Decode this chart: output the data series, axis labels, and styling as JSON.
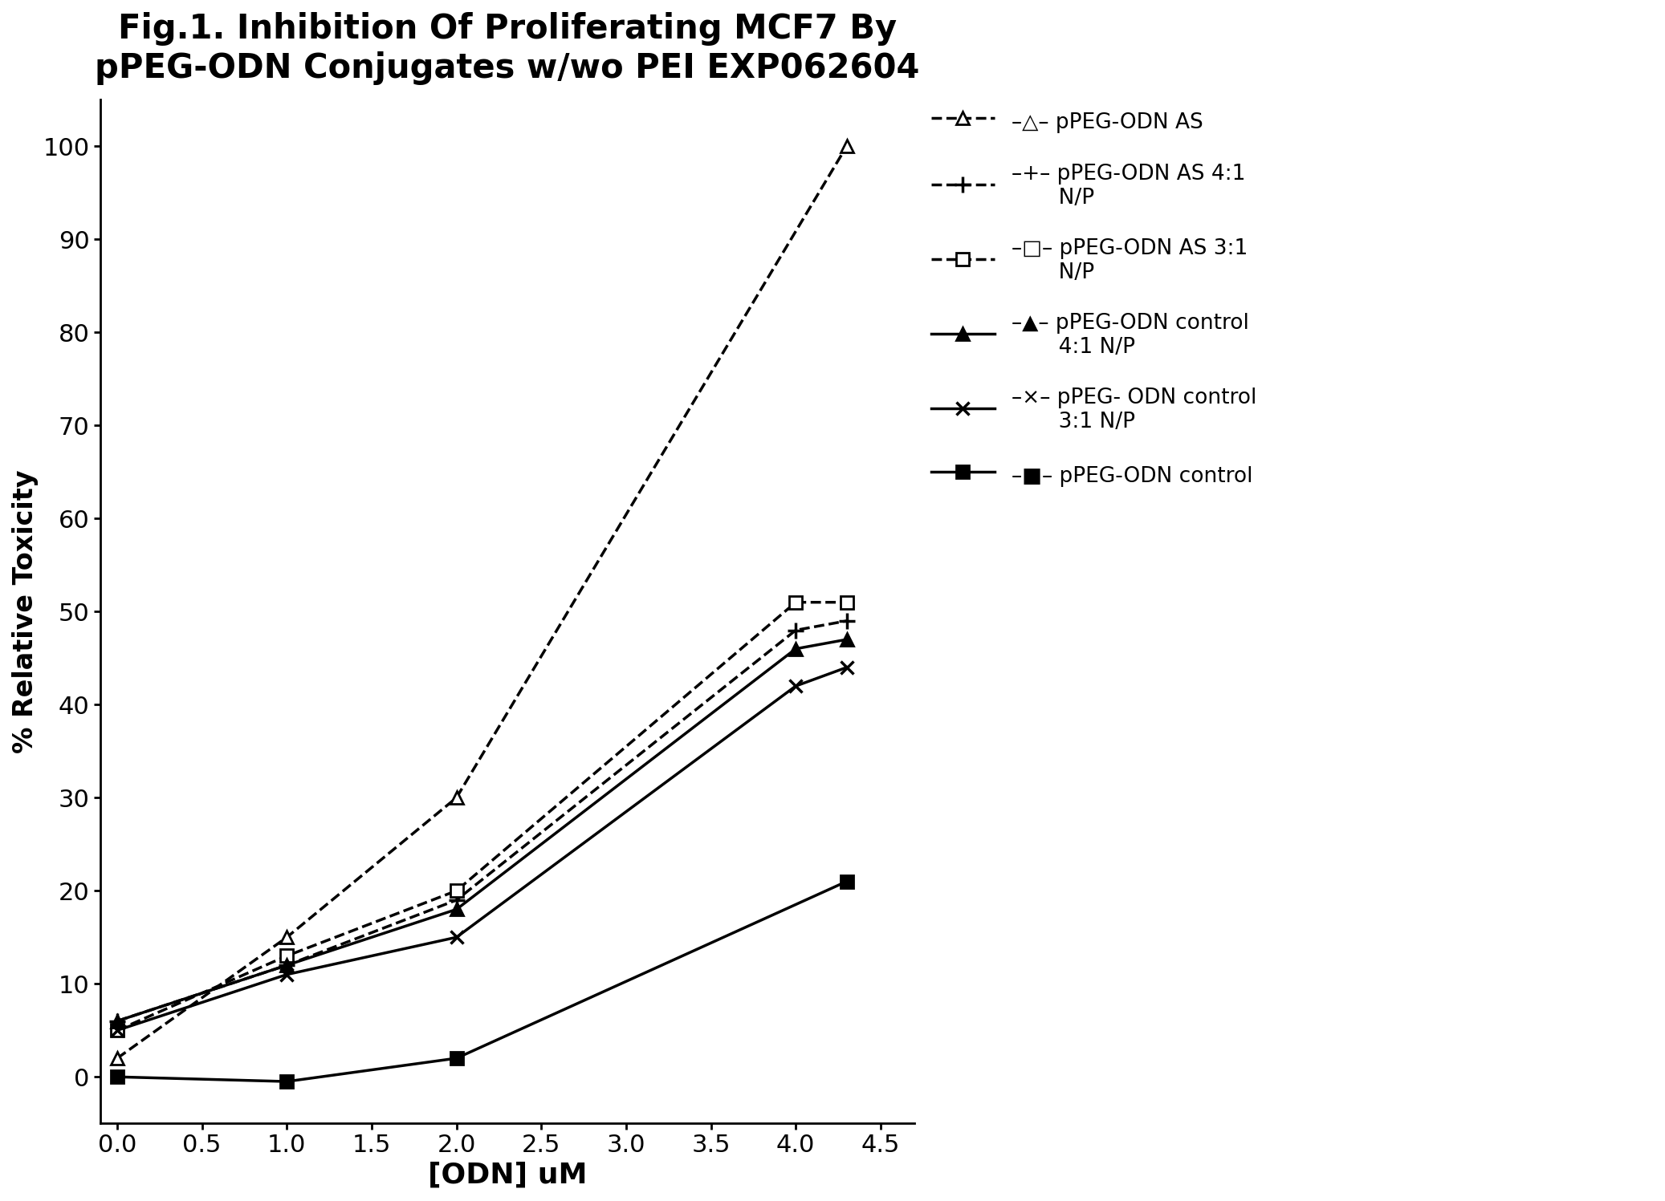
{
  "title": "Fig.1. Inhibition Of Proliferating MCF7 By\npPEG-ODN Conjugates w/wo PEI EXP062604",
  "xlabel": "[ODN] uM",
  "ylabel": "% Relative Toxicity",
  "xlim": [
    -0.1,
    4.7
  ],
  "ylim": [
    -5,
    105
  ],
  "xticks": [
    0,
    0.5,
    1,
    1.5,
    2,
    2.5,
    3,
    3.5,
    4,
    4.5
  ],
  "yticks": [
    0,
    10,
    20,
    30,
    40,
    50,
    60,
    70,
    80,
    90,
    100
  ],
  "series": [
    {
      "legend_label": "△  pPEG-ODN AS",
      "x": [
        0,
        1,
        2,
        4.3
      ],
      "y": [
        2,
        15,
        30,
        100
      ],
      "color": "#000000",
      "linestyle": "--",
      "linewidth": 2.5,
      "marker": "^",
      "markersize": 12,
      "markerfacecolor": "white",
      "markeredgecolor": "#000000",
      "markeredgewidth": 2.0
    },
    {
      "legend_label": "+  pPEG-ODN AS 4:1\n    N/P",
      "x": [
        0,
        1,
        2,
        4,
        4.3
      ],
      "y": [
        6,
        12,
        19,
        48,
        49
      ],
      "color": "#000000",
      "linestyle": "--",
      "linewidth": 2.5,
      "marker": "+",
      "markersize": 14,
      "markerfacecolor": "#000000",
      "markeredgecolor": "#000000",
      "markeredgewidth": 2.5
    },
    {
      "legend_label": "□  pPEG-ODN AS 3:1\n    N/P",
      "x": [
        0,
        1,
        2,
        4,
        4.3
      ],
      "y": [
        5,
        13,
        20,
        51,
        51
      ],
      "color": "#000000",
      "linestyle": "--",
      "linewidth": 2.5,
      "marker": "s",
      "markersize": 12,
      "markerfacecolor": "white",
      "markeredgecolor": "#000000",
      "markeredgewidth": 2.0
    },
    {
      "legend_label": "▲  pPEG-ODN control\n    4:1 N/P",
      "x": [
        0,
        1,
        2,
        4,
        4.3
      ],
      "y": [
        6,
        12,
        18,
        46,
        47
      ],
      "color": "#000000",
      "linestyle": "-",
      "linewidth": 2.5,
      "marker": "^",
      "markersize": 12,
      "markerfacecolor": "#000000",
      "markeredgecolor": "#000000",
      "markeredgewidth": 2.0
    },
    {
      "legend_label": "×  pPEG- ODN control\n    3:1 N/P",
      "x": [
        0,
        1,
        2,
        4,
        4.3
      ],
      "y": [
        5,
        11,
        15,
        42,
        44
      ],
      "color": "#000000",
      "linestyle": "-",
      "linewidth": 2.5,
      "marker": "x",
      "markersize": 12,
      "markerfacecolor": "#000000",
      "markeredgecolor": "#000000",
      "markeredgewidth": 2.5
    },
    {
      "legend_label": "■  pPEG-ODN control",
      "x": [
        0,
        1,
        2,
        4.3
      ],
      "y": [
        0,
        -0.5,
        2,
        21
      ],
      "color": "#000000",
      "linestyle": "-",
      "linewidth": 2.5,
      "marker": "s",
      "markersize": 12,
      "markerfacecolor": "#000000",
      "markeredgecolor": "#000000",
      "markeredgewidth": 2.0
    }
  ]
}
